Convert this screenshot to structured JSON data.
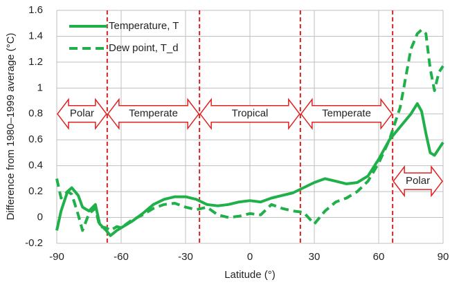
{
  "chart_data": {
    "type": "line",
    "xlabel": "Latitude (°)",
    "ylabel": "Difference from 1980–1999 average (°C)",
    "x": [
      -90,
      -88,
      -85,
      -83,
      -80,
      -78,
      -75,
      -72,
      -70,
      -67,
      -65,
      -62,
      -60,
      -55,
      -50,
      -45,
      -40,
      -35,
      -30,
      -25,
      -20,
      -15,
      -10,
      -5,
      0,
      5,
      10,
      15,
      20,
      25,
      30,
      35,
      40,
      45,
      50,
      55,
      60,
      65,
      70,
      75,
      78,
      80,
      82,
      84,
      86,
      88,
      90
    ],
    "series": [
      {
        "name": "Temperature, T",
        "color": "#1fb04a",
        "dash": false,
        "values": [
          -0.1,
          0.05,
          0.2,
          0.23,
          0.17,
          0.08,
          0.05,
          0.1,
          -0.05,
          -0.1,
          -0.14,
          -0.1,
          -0.08,
          -0.03,
          0.03,
          0.1,
          0.14,
          0.16,
          0.16,
          0.14,
          0.1,
          0.09,
          0.1,
          0.12,
          0.13,
          0.12,
          0.15,
          0.17,
          0.19,
          0.23,
          0.27,
          0.3,
          0.28,
          0.26,
          0.27,
          0.32,
          0.45,
          0.6,
          0.7,
          0.8,
          0.88,
          0.82,
          0.65,
          0.5,
          0.48,
          0.53,
          0.58
        ]
      },
      {
        "name": "Dew point, T_d",
        "color": "#1fb04a",
        "dash": true,
        "values": [
          0.3,
          0.15,
          0.2,
          0.18,
          0.02,
          -0.1,
          0.03,
          0.07,
          -0.07,
          -0.08,
          -0.1,
          -0.07,
          -0.08,
          -0.02,
          0.02,
          0.07,
          0.1,
          0.11,
          0.08,
          0.06,
          0.08,
          0.02,
          0,
          0.01,
          0.03,
          0.02,
          0.1,
          0.07,
          0.05,
          0.04,
          -0.05,
          0.05,
          0.12,
          0.15,
          0.2,
          0.28,
          0.42,
          0.6,
          0.85,
          1.3,
          1.42,
          1.45,
          1.42,
          1.15,
          0.98,
          1.12,
          1.17
        ]
      }
    ],
    "xlim": [
      -90,
      90
    ],
    "xticks": [
      -90,
      -60,
      -30,
      0,
      30,
      60,
      90
    ],
    "ylim": [
      -0.2,
      1.6
    ],
    "yticks": [
      -0.2,
      0,
      0.2,
      0.4,
      0.6,
      0.8,
      1,
      1.2,
      1.4,
      1.6
    ],
    "grid": true,
    "legend": "upper left",
    "vlines": [
      -66.5,
      -23.5,
      23.5,
      66.5
    ],
    "vline_color": "#e02020",
    "regions": [
      {
        "label": "Polar",
        "x": [
          -90,
          -66.5
        ],
        "y": 0.8
      },
      {
        "label": "Temperate",
        "x": [
          -66.5,
          -23.5
        ],
        "y": 0.8
      },
      {
        "label": "Tropical",
        "x": [
          -23.5,
          23.5
        ],
        "y": 0.8
      },
      {
        "label": "Temperate",
        "x": [
          23.5,
          66.5
        ],
        "y": 0.8
      },
      {
        "label": "Polar",
        "x": [
          66.5,
          90
        ],
        "y": 0.28
      }
    ]
  }
}
